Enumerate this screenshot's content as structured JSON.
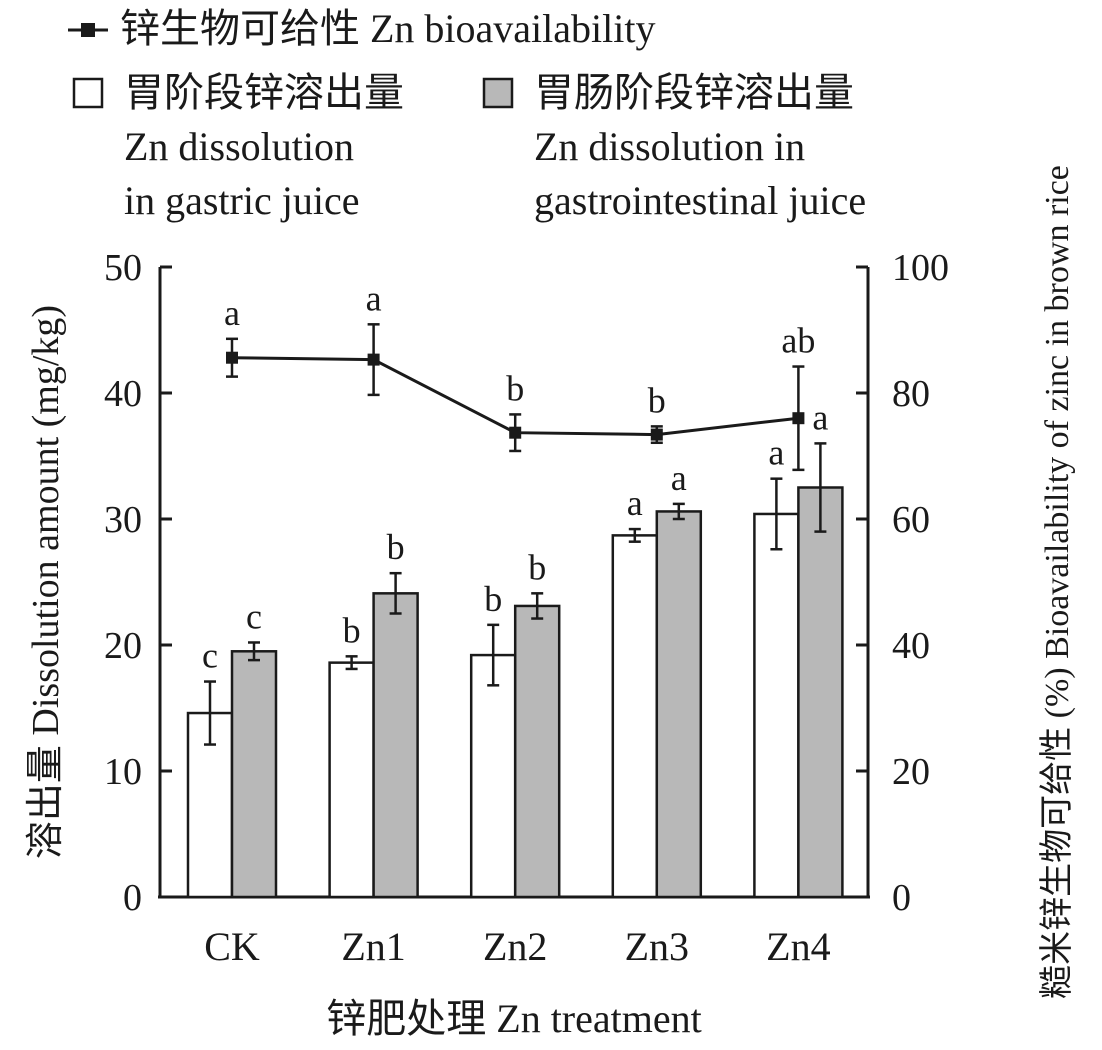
{
  "chart_data": {
    "type": "bar",
    "categories": [
      "CK",
      "Zn1",
      "Zn2",
      "Zn3",
      "Zn4"
    ],
    "xlabel": "锌肥处理 Zn treatment",
    "ylabel": "溶出量 Dissolution amount (mg/kg)",
    "y2label": "糙米锌生物可给性 (%) Bioavailability of zinc in brown rice",
    "ylim": [
      0,
      50
    ],
    "y2lim": [
      0,
      100
    ],
    "yticks": [
      0,
      10,
      20,
      30,
      40,
      50
    ],
    "y2ticks": [
      0,
      20,
      40,
      60,
      80,
      100
    ],
    "grid": false,
    "legend_position": "top",
    "legend": {
      "line": "锌生物可给性 Zn bioavailability",
      "gastric_cn": "胃阶段锌溶出量",
      "gastric_en1": "Zn dissolution",
      "gastric_en2": "in gastric juice",
      "gi_cn": "胃肠阶段锌溶出量",
      "gi_en1": "Zn dissolution in",
      "gi_en2": "gastrointestinal juice"
    },
    "series": [
      {
        "name": "胃阶段锌溶出量 Zn dissolution in gastric juice",
        "type": "bar",
        "axis": "left",
        "color": "#ffffff",
        "values": [
          14.6,
          18.6,
          19.2,
          28.7,
          30.4
        ],
        "errors": [
          2.5,
          0.5,
          2.4,
          0.5,
          2.8
        ],
        "letters": [
          "c",
          "b",
          "b",
          "a",
          "a"
        ]
      },
      {
        "name": "胃肠阶段锌溶出量 Zn dissolution in gastrointestinal juice",
        "type": "bar",
        "axis": "left",
        "color": "#b8b8b8",
        "values": [
          19.5,
          24.1,
          23.1,
          30.6,
          32.5
        ],
        "errors": [
          0.7,
          1.6,
          1.0,
          0.6,
          3.5
        ],
        "letters": [
          "c",
          "b",
          "b",
          "a",
          "a"
        ]
      },
      {
        "name": "锌生物可给性 Zn bioavailability",
        "type": "line",
        "axis": "right",
        "color": "#1a1a1a",
        "values": [
          85.6,
          85.3,
          73.7,
          73.4,
          76.0
        ],
        "errors": [
          3.0,
          5.6,
          2.9,
          1.3,
          8.2
        ],
        "letters": [
          "a",
          "a",
          "b",
          "b",
          "ab"
        ]
      }
    ]
  }
}
